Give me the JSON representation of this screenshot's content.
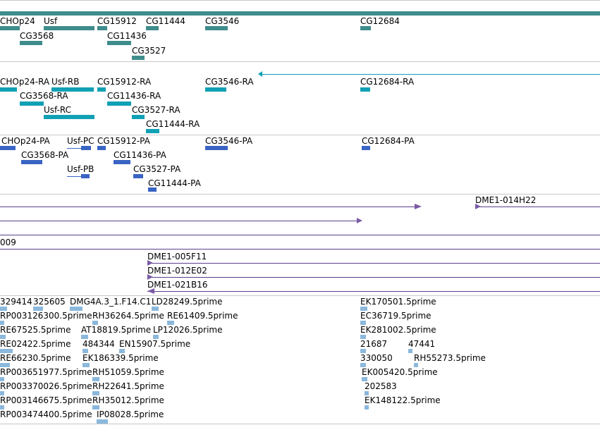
{
  "colors": {
    "gene": "#3f8c8c",
    "transcript": "#11a0b4",
    "protein": "#3a64c4",
    "est": "#8bb8dc",
    "clone": "#7a5aa6"
  },
  "gene_track": {
    "labels": [
      "CHOp24",
      "Usf",
      "CG15912",
      "CG11444",
      "CG3546",
      "CG12684",
      "CG3568",
      "CG11436",
      "CG3527"
    ]
  },
  "transcript_track": {
    "labels": [
      "CHOp24-RA",
      "Usf-RB",
      "CG15912-RA",
      "CG3546-RA",
      "CG12684-RA",
      "CG3568-RA",
      "CG11436-RA",
      "Usf-RC",
      "CG3527-RA",
      "CG11444-RA"
    ]
  },
  "protein_track": {
    "labels": [
      "CHOp24-PA",
      "Usf-PC",
      "CG15912-PA",
      "CG3546-PA",
      "CG12684-PA",
      "CG3568-PA",
      "CG11436-PA",
      "Usf-PB",
      "CG3527-PA",
      "CG11444-PA"
    ]
  },
  "clone_track": {
    "labels": [
      "DME1-014H22",
      "009"
    ]
  },
  "bac_track": {
    "labels": [
      "DME1-005F11",
      "DME1-012E02",
      "DME1-021B16"
    ]
  },
  "est_track": {
    "labels": [
      "329414",
      "325605",
      "DMG4A.3_1.F14.C1",
      "LD28249.5prime",
      "EK170501.5prime",
      "RP003126300.5prime",
      "RH36264.5prime",
      "RE61409.5prime",
      "EC36719.5prime",
      "RE67525.5prime",
      "AT18819.5prime",
      "LP12026.5prime",
      "EK281002.5prime",
      "RE02422.5prime",
      "484344",
      "EN15907.5prime",
      "21687",
      "47441",
      "RE66230.5prime",
      "EK186339.5prime",
      "330050",
      "RH55273.5prime",
      "RP003651977.5prime",
      "RH51059.5prime",
      "EK005420.5prime",
      "RP003370026.5prime",
      "RH22641.5prime",
      "202583",
      "RP003146675.5prime",
      "RH35012.5prime",
      "EK148122.5prime",
      "RP003474400.5prime",
      "IP08028.5prime"
    ]
  }
}
